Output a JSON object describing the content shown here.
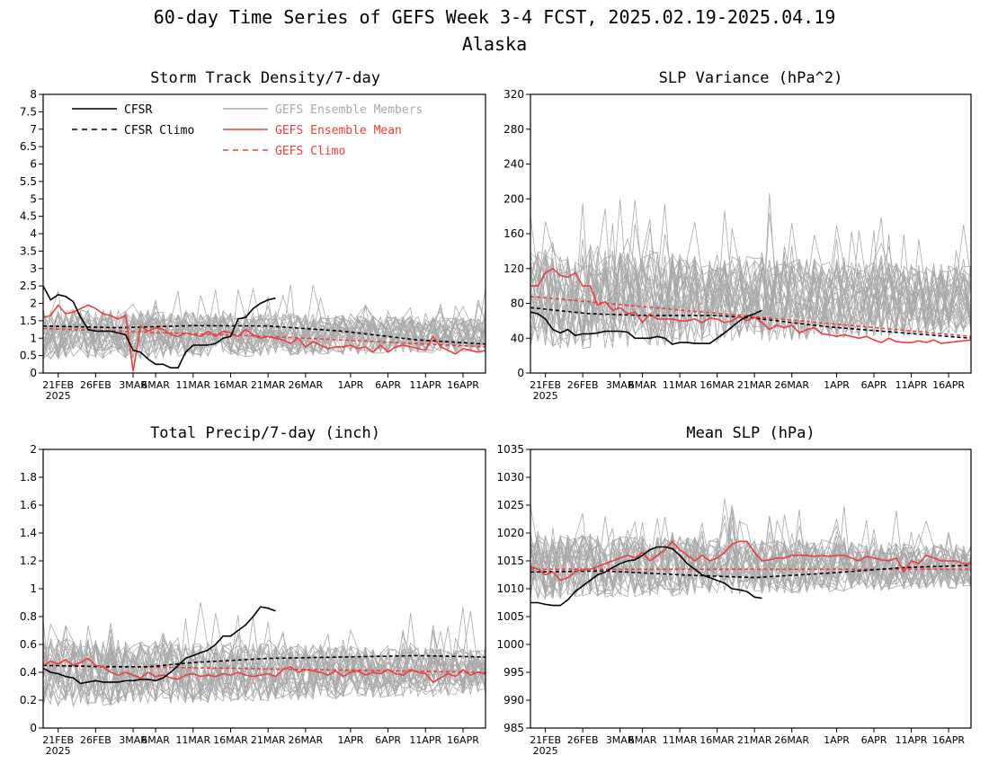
{
  "figure": {
    "title_line1": "60-day Time Series of GEFS Week 3-4 FCST, 2025.02.19-2025.04.19",
    "title_line2": "Alaska"
  },
  "colors": {
    "cfsr": "#000000",
    "members": "#a9a9a9",
    "ens_mean": "#f03c3c",
    "gefs_climo": "#f03c3c"
  },
  "legend": {
    "placement": "top of upper-left panel",
    "cfsr": "CFSR",
    "cfsr_climo": "CFSR Climo",
    "members": "GEFS Ensemble Members",
    "ens_mean": "GEFS Ensemble Mean",
    "gefs_climo": "GEFS Climo"
  },
  "x_axis": {
    "tick_labels": [
      "21FEB",
      "26FEB",
      "3MAR",
      "6MAR",
      "11MAR",
      "16MAR",
      "21MAR",
      "26MAR",
      "1APR",
      "6APR",
      "11APR",
      "16APR"
    ],
    "tick_days": [
      2,
      7,
      12,
      15,
      20,
      25,
      30,
      35,
      41,
      46,
      51,
      56
    ],
    "year_label": "2025",
    "day_range": [
      0,
      59
    ]
  },
  "chart_data": [
    {
      "type": "line",
      "title": "Storm Track Density/7-day",
      "ylim": [
        0,
        8
      ],
      "yticks": [
        "0",
        "0.5",
        "1",
        "1.5",
        "2",
        "2.5",
        "3",
        "3.5",
        "4",
        "4.5",
        "5",
        "5.5",
        "6",
        "6.5",
        "7",
        "7.5",
        "8"
      ],
      "member_spread": {
        "center": 1.1,
        "amplitude": 0.75,
        "min": 0
      },
      "series": [
        {
          "name": "CFSR",
          "role": "cfsr",
          "x": [
            0,
            1,
            2,
            3,
            4,
            5,
            6,
            7,
            8,
            9,
            10,
            11,
            12,
            13,
            14,
            15,
            16,
            17,
            18,
            19,
            20,
            21,
            22,
            23,
            24,
            25,
            26,
            27,
            28,
            29,
            30,
            31
          ],
          "values": [
            2.5,
            2.1,
            2.25,
            2.2,
            2.05,
            1.6,
            1.25,
            1.2,
            1.2,
            1.2,
            1.15,
            1.1,
            0.65,
            0.6,
            0.4,
            0.25,
            0.25,
            0.15,
            0.15,
            0.6,
            0.8,
            0.8,
            0.8,
            0.85,
            1.0,
            1.05,
            1.55,
            1.6,
            1.85,
            2.0,
            2.1,
            2.15
          ]
        },
        {
          "name": "CFSR Climo",
          "role": "cfsr_climo",
          "x": [
            0,
            10,
            20,
            30,
            40,
            50,
            59
          ],
          "values": [
            1.35,
            1.3,
            1.36,
            1.35,
            1.2,
            0.95,
            0.83
          ]
        },
        {
          "name": "GEFS Ensemble Mean",
          "role": "ens_mean",
          "x": [
            0,
            1,
            2,
            3,
            4,
            5,
            6,
            7,
            8,
            9,
            10,
            11,
            12,
            13,
            14,
            15,
            16,
            17,
            18,
            19,
            20,
            21,
            22,
            23,
            24,
            25,
            26,
            27,
            28,
            29,
            30,
            31,
            32,
            33,
            34,
            35,
            36,
            37,
            38,
            39,
            40,
            41,
            42,
            43,
            44,
            45,
            46,
            47,
            48,
            49,
            50,
            51,
            52,
            53,
            54,
            55,
            56,
            57,
            58,
            59
          ],
          "values": [
            1.6,
            1.65,
            1.95,
            1.7,
            1.75,
            1.85,
            1.95,
            1.85,
            1.7,
            1.65,
            1.55,
            1.65,
            0.05,
            1.35,
            1.2,
            1.3,
            1.25,
            1.1,
            1.05,
            1.15,
            1.1,
            1.05,
            1.2,
            1.05,
            1.2,
            1.15,
            1.05,
            1.25,
            1.1,
            1.0,
            1.05,
            1.0,
            0.95,
            0.85,
            1.0,
            0.75,
            0.9,
            0.8,
            0.7,
            0.75,
            0.75,
            0.8,
            0.7,
            0.75,
            0.6,
            0.8,
            0.6,
            0.75,
            0.8,
            0.75,
            0.7,
            0.65,
            1.05,
            0.75,
            0.65,
            0.55,
            0.7,
            0.65,
            0.6,
            0.65
          ]
        },
        {
          "name": "GEFS Climo",
          "role": "gefs_climo",
          "x": [
            0,
            30,
            59
          ],
          "values": [
            1.28,
            1.05,
            0.75
          ]
        }
      ]
    },
    {
      "type": "line",
      "title": "SLP Variance (hPa^2)",
      "ylim": [
        0,
        320
      ],
      "yticks": [
        "0",
        "40",
        "80",
        "120",
        "160",
        "200",
        "240",
        "280",
        "320"
      ],
      "member_spread": {
        "center": 85,
        "amplitude": 60,
        "min": 0
      },
      "series": [
        {
          "name": "CFSR",
          "role": "cfsr",
          "x": [
            0,
            1,
            2,
            3,
            4,
            5,
            6,
            7,
            8,
            9,
            10,
            11,
            12,
            13,
            14,
            15,
            16,
            17,
            18,
            19,
            20,
            21,
            22,
            23,
            24,
            25,
            26,
            27,
            28,
            29,
            30,
            31
          ],
          "values": [
            70,
            68,
            62,
            50,
            46,
            50,
            43,
            45,
            45,
            46,
            48,
            48,
            48,
            47,
            40,
            40,
            40,
            42,
            40,
            33,
            35,
            35,
            34,
            34,
            34,
            40,
            46,
            53,
            60,
            65,
            68,
            72
          ]
        },
        {
          "name": "CFSR Climo",
          "role": "cfsr_climo",
          "x": [
            0,
            8,
            16,
            25,
            30,
            40,
            50,
            59
          ],
          "values": [
            75,
            68,
            66,
            66,
            63,
            53,
            46,
            40
          ]
        },
        {
          "name": "GEFS Ensemble Mean",
          "role": "ens_mean",
          "x": [
            0,
            1,
            2,
            3,
            4,
            5,
            6,
            7,
            8,
            9,
            10,
            11,
            12,
            13,
            14,
            15,
            16,
            17,
            18,
            19,
            20,
            21,
            22,
            23,
            24,
            25,
            26,
            27,
            28,
            29,
            30,
            31,
            32,
            33,
            34,
            35,
            36,
            37,
            38,
            39,
            40,
            41,
            42,
            43,
            44,
            45,
            46,
            47,
            48,
            49,
            50,
            51,
            52,
            53,
            54,
            55,
            56,
            57,
            58,
            59
          ],
          "values": [
            100,
            100,
            115,
            120,
            112,
            110,
            115,
            100,
            100,
            78,
            82,
            72,
            75,
            68,
            70,
            58,
            68,
            62,
            62,
            62,
            60,
            60,
            62,
            58,
            63,
            62,
            58,
            60,
            65,
            60,
            64,
            58,
            50,
            55,
            52,
            55,
            46,
            50,
            52,
            45,
            44,
            42,
            44,
            42,
            40,
            42,
            38,
            35,
            40,
            36,
            35,
            35,
            37,
            35,
            38,
            34,
            35,
            36,
            37,
            38
          ]
        },
        {
          "name": "GEFS Climo",
          "role": "gefs_climo",
          "x": [
            0,
            59
          ],
          "values": [
            88,
            42
          ]
        }
      ]
    },
    {
      "type": "line",
      "title": "Total Precip/7-day (inch)",
      "ylim": [
        0,
        2
      ],
      "yticks": [
        "0",
        "0.2",
        "0.4",
        "0.6",
        "0.8",
        "1",
        "1.2",
        "1.4",
        "1.6",
        "1.8",
        "2"
      ],
      "member_spread": {
        "center": 0.4,
        "amplitude": 0.25,
        "min": 0.05
      },
      "series": [
        {
          "name": "CFSR",
          "role": "cfsr",
          "x": [
            0,
            1,
            2,
            3,
            4,
            5,
            6,
            7,
            8,
            9,
            10,
            11,
            12,
            13,
            14,
            15,
            16,
            17,
            18,
            19,
            20,
            21,
            22,
            23,
            24,
            25,
            26,
            27,
            28,
            29,
            30,
            31
          ],
          "values": [
            0.43,
            0.4,
            0.39,
            0.37,
            0.36,
            0.32,
            0.33,
            0.34,
            0.33,
            0.33,
            0.33,
            0.34,
            0.34,
            0.35,
            0.35,
            0.34,
            0.36,
            0.4,
            0.45,
            0.5,
            0.52,
            0.54,
            0.56,
            0.6,
            0.66,
            0.66,
            0.7,
            0.74,
            0.8,
            0.87,
            0.86,
            0.84
          ]
        },
        {
          "name": "CFSR Climo",
          "role": "cfsr_climo",
          "x": [
            0,
            8,
            14,
            20,
            30,
            40,
            50,
            59
          ],
          "values": [
            0.45,
            0.44,
            0.44,
            0.47,
            0.5,
            0.51,
            0.52,
            0.51
          ]
        },
        {
          "name": "GEFS Ensemble Mean",
          "role": "ens_mean",
          "x": [
            0,
            1,
            2,
            3,
            4,
            5,
            6,
            7,
            8,
            9,
            10,
            11,
            12,
            13,
            14,
            15,
            16,
            17,
            18,
            19,
            20,
            21,
            22,
            23,
            24,
            25,
            26,
            27,
            28,
            29,
            30,
            31,
            32,
            33,
            34,
            35,
            36,
            37,
            38,
            39,
            40,
            41,
            42,
            43,
            44,
            45,
            46,
            47,
            48,
            49,
            50,
            51,
            52,
            53,
            54,
            55,
            56,
            57,
            58,
            59
          ],
          "values": [
            0.45,
            0.48,
            0.46,
            0.49,
            0.45,
            0.47,
            0.5,
            0.45,
            0.44,
            0.4,
            0.38,
            0.4,
            0.38,
            0.36,
            0.4,
            0.37,
            0.38,
            0.36,
            0.35,
            0.38,
            0.39,
            0.37,
            0.38,
            0.37,
            0.39,
            0.38,
            0.4,
            0.38,
            0.37,
            0.38,
            0.39,
            0.37,
            0.42,
            0.44,
            0.4,
            0.42,
            0.41,
            0.4,
            0.38,
            0.41,
            0.37,
            0.4,
            0.41,
            0.38,
            0.4,
            0.39,
            0.42,
            0.39,
            0.38,
            0.42,
            0.4,
            0.39,
            0.33,
            0.36,
            0.39,
            0.37,
            0.42,
            0.38,
            0.4,
            0.39
          ]
        },
        {
          "name": "GEFS Climo",
          "role": "gefs_climo",
          "x": [
            0,
            59
          ],
          "values": [
            0.45,
            0.4
          ]
        }
      ]
    },
    {
      "type": "line",
      "title": "Mean SLP (hPa)",
      "ylim": [
        985,
        1035
      ],
      "yticks": [
        "985",
        "990",
        "995",
        "1000",
        "1005",
        "1010",
        "1015",
        "1020",
        "1025",
        "1030",
        "1035"
      ],
      "member_spread": {
        "center": 1014,
        "amplitude": 6,
        "min": 998
      },
      "series": [
        {
          "name": "CFSR",
          "role": "cfsr",
          "x": [
            0,
            1,
            2,
            3,
            4,
            5,
            6,
            7,
            8,
            9,
            10,
            11,
            12,
            13,
            14,
            15,
            16,
            17,
            18,
            19,
            20,
            21,
            22,
            23,
            24,
            25,
            26,
            27,
            28,
            29,
            30,
            31
          ],
          "values": [
            1007.5,
            1007.5,
            1007.2,
            1007,
            1007,
            1008,
            1009.5,
            1010.5,
            1011.5,
            1012.5,
            1013,
            1013.8,
            1014.5,
            1015,
            1015.2,
            1016,
            1017,
            1017.5,
            1017.5,
            1017.2,
            1016,
            1014.5,
            1013.5,
            1012.5,
            1012,
            1011.5,
            1011,
            1010,
            1009.8,
            1009.5,
            1008.5,
            1008.3
          ]
        },
        {
          "name": "CFSR Climo",
          "role": "cfsr_climo",
          "x": [
            0,
            10,
            20,
            30,
            40,
            50,
            59
          ],
          "values": [
            1013,
            1013.2,
            1012.5,
            1012,
            1012.8,
            1013.8,
            1014.2
          ]
        },
        {
          "name": "GEFS Ensemble Mean",
          "role": "ens_mean",
          "x": [
            0,
            1,
            2,
            3,
            4,
            5,
            6,
            7,
            8,
            9,
            10,
            11,
            12,
            13,
            14,
            15,
            16,
            17,
            18,
            19,
            20,
            21,
            22,
            23,
            24,
            25,
            26,
            27,
            28,
            29,
            30,
            31,
            32,
            33,
            34,
            35,
            36,
            37,
            38,
            39,
            40,
            41,
            42,
            43,
            44,
            45,
            46,
            47,
            48,
            49,
            50,
            51,
            52,
            53,
            54,
            55,
            56,
            57,
            58,
            59
          ],
          "values": [
            1014,
            1013.5,
            1012.5,
            1013,
            1011.5,
            1012,
            1013,
            1013.5,
            1013.5,
            1014,
            1014.5,
            1015,
            1015.5,
            1016,
            1015.5,
            1016.5,
            1015,
            1016,
            1017,
            1018.5,
            1017,
            1016,
            1015,
            1016,
            1015,
            1015.5,
            1016.5,
            1018,
            1018.5,
            1018.5,
            1016.5,
            1015,
            1015.2,
            1015.5,
            1015.5,
            1016,
            1016,
            1016,
            1015.8,
            1016,
            1015.8,
            1016,
            1016,
            1015.5,
            1015,
            1015.8,
            1015.5,
            1015.2,
            1015,
            1015.5,
            1013,
            1015,
            1014.5,
            1016,
            1015.5,
            1015,
            1015,
            1015,
            1014.5,
            1014.5
          ]
        },
        {
          "name": "GEFS Climo",
          "role": "gefs_climo",
          "x": [
            0,
            59
          ],
          "values": [
            1013.5,
            1013.5
          ]
        }
      ]
    }
  ]
}
